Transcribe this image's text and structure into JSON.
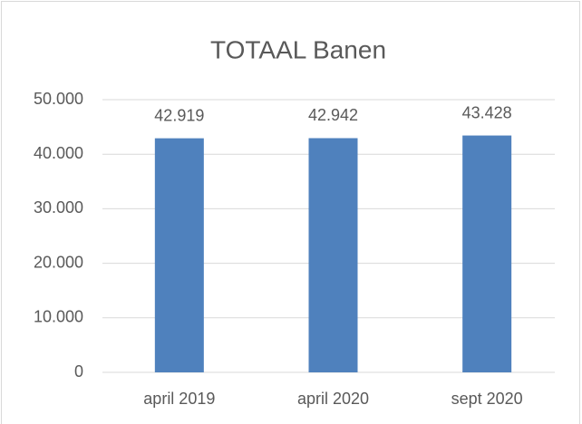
{
  "chart_data": {
    "type": "bar",
    "title": "TOTAAL Banen",
    "categories": [
      "april 2019",
      "april 2020",
      "sept 2020"
    ],
    "values": [
      42919,
      42942,
      43428
    ],
    "value_labels": [
      "42.919",
      "42.942",
      "43.428"
    ],
    "color": "#4f81bd",
    "ylim": [
      0,
      50000
    ],
    "yticks": [
      0,
      {
        "value": 10000,
        "label": "10.000"
      },
      {
        "value": 20000,
        "label": "20.000"
      },
      {
        "value": 30000,
        "label": "30.000"
      },
      {
        "value": 40000,
        "label": "40.000"
      },
      {
        "value": 50000,
        "label": "50.000"
      }
    ],
    "grid": true
  }
}
